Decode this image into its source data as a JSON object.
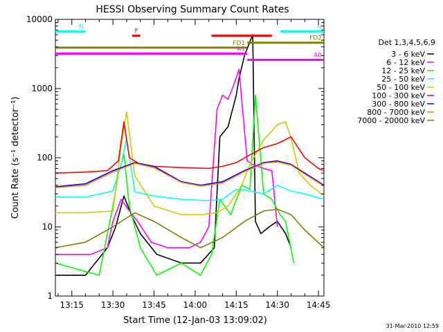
{
  "chart_data": {
    "type": "line",
    "title": "HESSI Observing Summary Count Rates",
    "xlabel": "Start Time (12-Jan-03 13:09:02)",
    "ylabel": "Count Rate (s⁻¹ detector⁻¹)",
    "xlim": [
      "13:09",
      "14:47"
    ],
    "ylim": [
      1,
      10000
    ],
    "yscale": "log",
    "x_ticks": [
      "13:15",
      "13:30",
      "13:45",
      "14:00",
      "14:15",
      "14:30",
      "14:45"
    ],
    "y_ticks": [
      "1",
      "10",
      "100",
      "1000",
      "10000"
    ],
    "legend": {
      "title": "Det 1,3,4,5,6,9",
      "placement": "right"
    },
    "timestamp": "31-Mar-2010 12:59",
    "series": [
      {
        "name": "3 - 6 keV",
        "color": "#000000",
        "x": [
          "13:09",
          "13:20",
          "13:28",
          "13:31",
          "13:34",
          "13:37",
          "13:40",
          "13:46",
          "13:55",
          "14:02",
          "14:07",
          "14:09",
          "14:12",
          "14:15",
          "14:16",
          "14:18",
          "14:21",
          "14:22",
          "14:24",
          "14:27",
          "14:30",
          "14:33",
          "14:35"
        ],
        "y": [
          2,
          2,
          5,
          10,
          28,
          14,
          8,
          4,
          3,
          3,
          5,
          200,
          280,
          800,
          1400,
          3000,
          6000,
          12,
          8,
          10,
          12,
          8,
          5
        ]
      },
      {
        "name": "6 - 12 keV",
        "color": "#ff00ff",
        "x": [
          "13:09",
          "13:22",
          "13:28",
          "13:30",
          "13:33",
          "13:36",
          "13:39",
          "13:44",
          "13:50",
          "13:58",
          "14:02",
          "14:05",
          "14:08",
          "14:10",
          "14:12",
          "14:14",
          "14:16",
          "14:19",
          "14:21",
          "14:25",
          "14:28",
          "14:30"
        ],
        "y": [
          4,
          4,
          5,
          12,
          25,
          17,
          12,
          6,
          5,
          5,
          6,
          10,
          500,
          800,
          700,
          1100,
          1900,
          90,
          80,
          70,
          65,
          10
        ]
      },
      {
        "name": "12 - 25 keV",
        "color": "#00ff00",
        "x": [
          "13:09",
          "13:25",
          "13:30",
          "13:32",
          "13:34",
          "13:36",
          "13:40",
          "13:46",
          "13:55",
          "14:02",
          "14:06",
          "14:09",
          "14:13",
          "14:17",
          "14:20",
          "14:22",
          "14:25",
          "14:28",
          "14:31",
          "14:33",
          "14:36"
        ],
        "y": [
          3,
          2,
          20,
          60,
          110,
          20,
          5,
          2,
          3,
          2,
          4,
          25,
          15,
          40,
          35,
          800,
          30,
          25,
          15,
          12,
          3
        ]
      },
      {
        "name": "25 - 50 keV",
        "color": "#00ffff",
        "x": [
          "13:09",
          "13:20",
          "13:30",
          "13:33",
          "13:35",
          "13:38",
          "13:45",
          "13:55",
          "14:05",
          "14:10",
          "14:15",
          "14:20",
          "14:25",
          "14:30",
          "14:35",
          "14:40",
          "14:47"
        ],
        "y": [
          27,
          27,
          33,
          80,
          190,
          32,
          28,
          25,
          24,
          25,
          35,
          33,
          30,
          40,
          33,
          30,
          25
        ]
      },
      {
        "name": "50 - 100 keV",
        "color": "#cccc00",
        "x": [
          "13:09",
          "13:20",
          "13:30",
          "13:33",
          "13:35",
          "13:38",
          "13:45",
          "13:55",
          "14:02",
          "14:08",
          "14:12",
          "14:17",
          "14:20",
          "14:25",
          "14:30",
          "14:33",
          "14:35",
          "14:38",
          "14:42",
          "14:47"
        ],
        "y": [
          16,
          16,
          17,
          150,
          460,
          55,
          20,
          15,
          15,
          16,
          20,
          40,
          80,
          180,
          300,
          330,
          190,
          60,
          40,
          28
        ]
      },
      {
        "name": "100 - 300 keV",
        "color": "#ff0000",
        "x": [
          "13:09",
          "13:20",
          "13:28",
          "13:32",
          "13:34",
          "13:36",
          "13:40",
          "13:45",
          "13:55",
          "14:05",
          "14:10",
          "14:15",
          "14:20",
          "14:25",
          "14:30",
          "14:35",
          "14:40",
          "14:45",
          "14:47"
        ],
        "y": [
          60,
          62,
          65,
          90,
          330,
          100,
          80,
          75,
          72,
          70,
          75,
          85,
          110,
          140,
          160,
          200,
          100,
          70,
          65
        ]
      },
      {
        "name": "300 - 800 keV",
        "color": "#0000ff",
        "x": [
          "13:09",
          "13:20",
          "13:30",
          "13:38",
          "13:45",
          "13:55",
          "14:02",
          "14:10",
          "14:18",
          "14:25",
          "14:30",
          "14:35",
          "14:40",
          "14:47"
        ],
        "y": [
          38,
          42,
          65,
          85,
          75,
          45,
          40,
          45,
          65,
          85,
          90,
          80,
          60,
          40
        ]
      },
      {
        "name": "800 - 7000 keV",
        "color": "#ff8000",
        "x": [
          "13:09",
          "13:20",
          "13:30",
          "13:38",
          "13:45",
          "13:55",
          "14:02",
          "14:10",
          "14:18",
          "14:25",
          "14:30",
          "14:35",
          "14:40",
          "14:47"
        ],
        "y": [
          37,
          40,
          62,
          83,
          72,
          44,
          39,
          43,
          63,
          83,
          87,
          78,
          58,
          39
        ]
      },
      {
        "name": "7000 - 20000 keV",
        "color": "#808000",
        "x": [
          "13:09",
          "13:20",
          "13:30",
          "13:38",
          "13:45",
          "13:55",
          "14:02",
          "14:10",
          "14:18",
          "14:25",
          "14:30",
          "14:35",
          "14:40",
          "14:47"
        ],
        "y": [
          5,
          6,
          10,
          16,
          12,
          7,
          5,
          7,
          12,
          17,
          18,
          15,
          9,
          5
        ]
      }
    ],
    "annotations": [
      {
        "text": "N",
        "color": "#00ffff",
        "x": [
          "13:09",
          "13:20"
        ],
        "y": 6700
      },
      {
        "text": "N",
        "color": "#00ffff",
        "x": [
          "14:31",
          "14:47"
        ],
        "y": 6700
      },
      {
        "text": "F",
        "color": "#ff0000",
        "x": [
          "13:37",
          "13:40"
        ],
        "y": 5800
      },
      {
        "text": "",
        "color": "#ff0000",
        "x": [
          "14:06",
          "14:28"
        ],
        "y": 5800
      },
      {
        "text": "FD1",
        "color": "#808000",
        "x": [
          "13:09",
          "14:19"
        ],
        "y": 3900
      },
      {
        "text": "FD2",
        "color": "#808000",
        "x": [
          "14:19",
          "14:47"
        ],
        "y": 4600
      },
      {
        "text": "A1",
        "color": "#ff00ff",
        "x": [
          "13:09",
          "14:19"
        ],
        "y": 3200
      },
      {
        "text": "A0",
        "color": "#ff00ff",
        "x": [
          "14:19",
          "14:47"
        ],
        "y": 2600
      }
    ]
  }
}
